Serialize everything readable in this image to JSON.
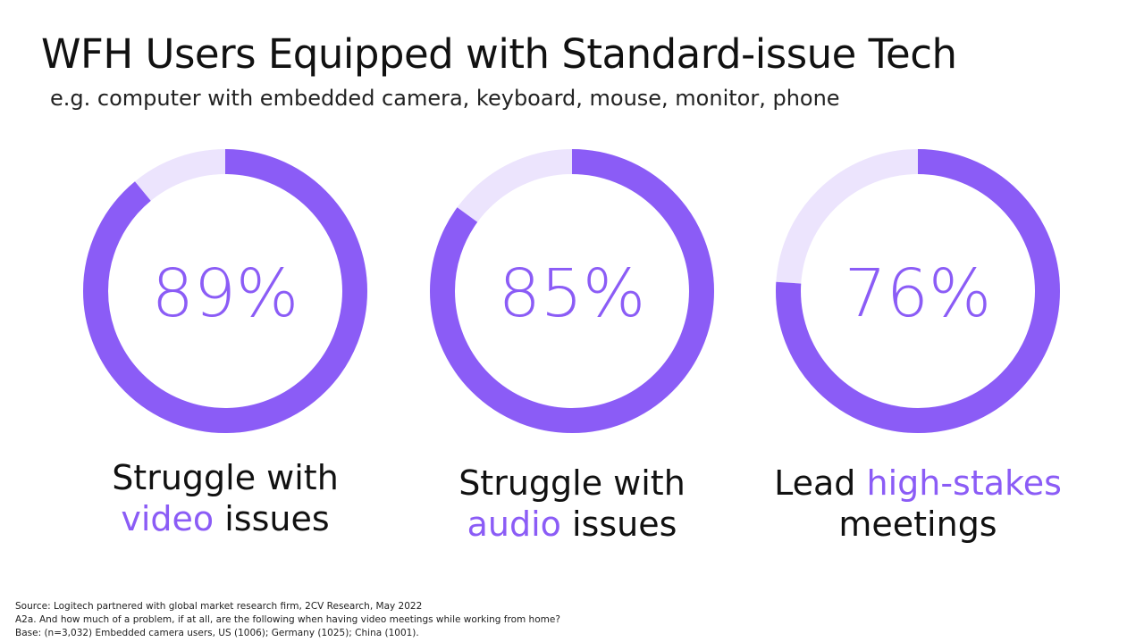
{
  "title": "WFH Users Equipped with Standard-issue Tech",
  "subtitle": "e.g. computer with embedded camera, keyboard, mouse, monitor, phone",
  "colors": {
    "accent": "#8b5cf6",
    "remainder": "#ece4fd",
    "text": "#111111"
  },
  "chart_data": [
    {
      "type": "pie",
      "variant": "donut",
      "value": 89,
      "label": "89%",
      "caption": {
        "line1": "Struggle with",
        "highlight": "video",
        "rest": " issues"
      }
    },
    {
      "type": "pie",
      "variant": "donut",
      "value": 85,
      "label": "85%",
      "caption": {
        "line1": "Struggle with",
        "highlight": "audio",
        "rest": " issues"
      }
    },
    {
      "type": "pie",
      "variant": "donut",
      "value": 76,
      "label": "76%",
      "caption": {
        "prefix": "Lead ",
        "highlight": "high-stakes",
        "line2": "meetings"
      }
    }
  ],
  "source": {
    "line1": "Source: Logitech partnered with global market research firm, 2CV Research, May 2022",
    "line2": "A2a. And how much of a problem, if at all, are the following when having video meetings while working from home?",
    "line3": "Base: (n=3,032) Embedded camera users, US (1006); Germany (1025); China (1001)."
  }
}
